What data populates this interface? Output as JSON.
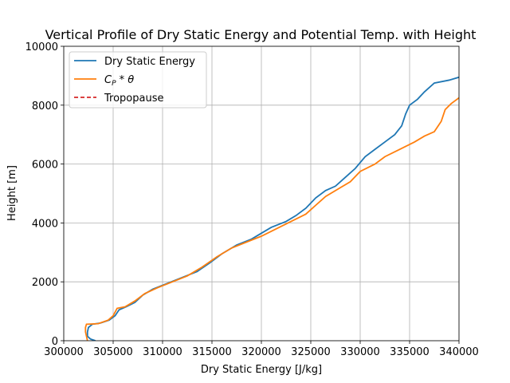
{
  "chart_data": {
    "type": "line",
    "title": "Vertical Profile of Dry Static Energy and Potential Temp. with Height",
    "xlabel": "Dry Static Energy [J/kg]",
    "ylabel": "Height [m]",
    "xlim": [
      300000,
      340000
    ],
    "ylim": [
      0,
      10000
    ],
    "xticks": [
      300000,
      305000,
      310000,
      315000,
      320000,
      325000,
      330000,
      335000,
      340000
    ],
    "yticks": [
      0,
      2000,
      4000,
      6000,
      8000,
      10000
    ],
    "xtick_labels": [
      "300000",
      "305000",
      "310000",
      "315000",
      "320000",
      "325000",
      "330000",
      "335000",
      "340000"
    ],
    "ytick_labels": [
      "0",
      "2000",
      "4000",
      "6000",
      "8000",
      "10000"
    ],
    "grid": true,
    "legend_position": "top-left",
    "series": [
      {
        "name": "Dry Static Energy",
        "color": "#1f77b4",
        "style": "solid",
        "points": [
          [
            303200,
            0
          ],
          [
            302700,
            60
          ],
          [
            302400,
            150
          ],
          [
            302400,
            300
          ],
          [
            302500,
            450
          ],
          [
            302900,
            560
          ],
          [
            303700,
            600
          ],
          [
            304600,
            700
          ],
          [
            305200,
            850
          ],
          [
            305600,
            1050
          ],
          [
            306300,
            1150
          ],
          [
            307200,
            1300
          ],
          [
            308000,
            1550
          ],
          [
            309000,
            1750
          ],
          [
            310500,
            1950
          ],
          [
            312000,
            2150
          ],
          [
            313500,
            2350
          ],
          [
            314800,
            2650
          ],
          [
            316000,
            2950
          ],
          [
            317500,
            3250
          ],
          [
            319000,
            3450
          ],
          [
            320000,
            3650
          ],
          [
            321000,
            3850
          ],
          [
            322500,
            4050
          ],
          [
            323500,
            4250
          ],
          [
            324500,
            4500
          ],
          [
            325500,
            4850
          ],
          [
            326500,
            5100
          ],
          [
            327500,
            5250
          ],
          [
            328500,
            5550
          ],
          [
            329500,
            5850
          ],
          [
            330500,
            6250
          ],
          [
            331500,
            6500
          ],
          [
            332500,
            6750
          ],
          [
            333500,
            7000
          ],
          [
            334200,
            7300
          ],
          [
            334600,
            7700
          ],
          [
            335000,
            8000
          ],
          [
            335800,
            8200
          ],
          [
            336500,
            8450
          ],
          [
            337500,
            8750
          ],
          [
            339000,
            8850
          ],
          [
            340000,
            8950
          ]
        ]
      },
      {
        "name": "C_P * θ",
        "label_main": "C",
        "label_sub": "P",
        "label_rest": " * θ",
        "color": "#ff7f0e",
        "style": "solid",
        "points": [
          [
            302400,
            0
          ],
          [
            302300,
            150
          ],
          [
            302200,
            300
          ],
          [
            302200,
            450
          ],
          [
            302300,
            560
          ],
          [
            303500,
            580
          ],
          [
            304500,
            700
          ],
          [
            305000,
            850
          ],
          [
            305400,
            1100
          ],
          [
            306200,
            1150
          ],
          [
            307200,
            1350
          ],
          [
            308200,
            1600
          ],
          [
            309500,
            1800
          ],
          [
            311000,
            2000
          ],
          [
            312500,
            2200
          ],
          [
            314000,
            2500
          ],
          [
            315500,
            2850
          ],
          [
            317000,
            3150
          ],
          [
            318500,
            3350
          ],
          [
            320000,
            3550
          ],
          [
            321500,
            3800
          ],
          [
            323000,
            4050
          ],
          [
            324500,
            4300
          ],
          [
            325500,
            4600
          ],
          [
            326500,
            4900
          ],
          [
            328000,
            5200
          ],
          [
            329000,
            5400
          ],
          [
            330000,
            5750
          ],
          [
            331500,
            6000
          ],
          [
            332500,
            6250
          ],
          [
            334000,
            6500
          ],
          [
            335500,
            6750
          ],
          [
            336500,
            6950
          ],
          [
            337500,
            7100
          ],
          [
            338200,
            7450
          ],
          [
            338600,
            7850
          ],
          [
            339200,
            8050
          ],
          [
            340000,
            8250
          ]
        ]
      },
      {
        "name": "Tropopause",
        "color": "#d62728",
        "style": "dashed",
        "points": []
      }
    ]
  }
}
